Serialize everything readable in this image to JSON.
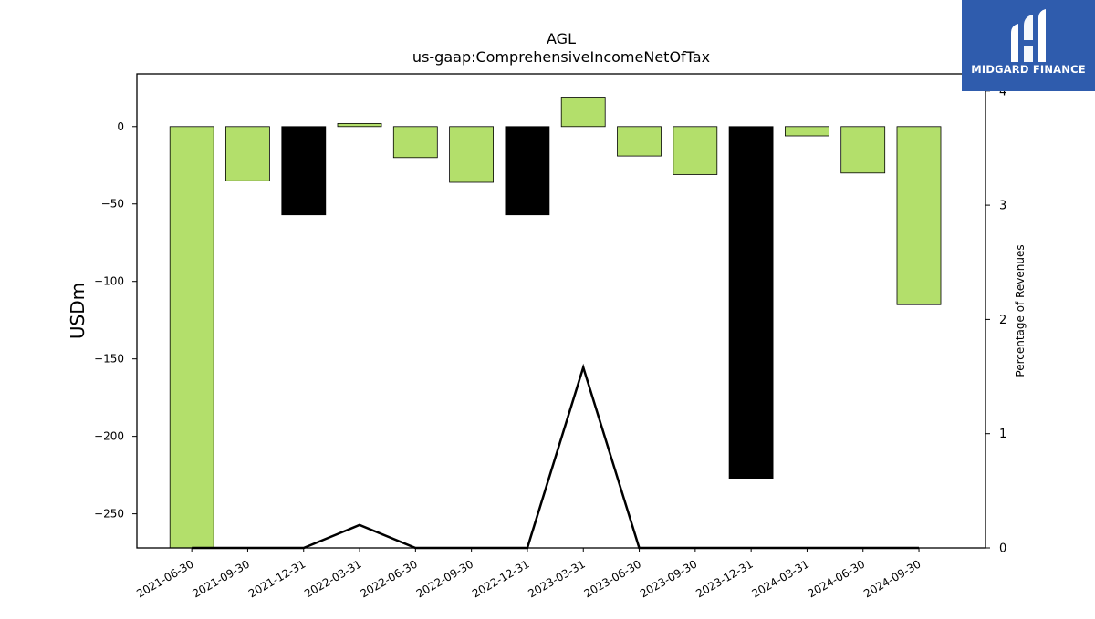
{
  "chart_data": {
    "type": "bar",
    "title": "AGL",
    "subtitle": "us-gaap:ComprehensiveIncomeNetOfTax",
    "ylabel": "USDm",
    "ylabel_right": "Percentage of Revenues",
    "ylim": [
      -272,
      34
    ],
    "ylim_right": [
      0,
      4.15
    ],
    "yticks": [
      0,
      -50,
      -100,
      -150,
      -200,
      -250
    ],
    "yticks_right": [
      0,
      1,
      2,
      3,
      4
    ],
    "categories": [
      "2021-06-30",
      "2021-09-30",
      "2021-12-31",
      "2022-03-31",
      "2022-06-30",
      "2022-09-30",
      "2022-12-31",
      "2023-03-31",
      "2023-06-30",
      "2023-09-30",
      "2023-12-31",
      "2024-03-31",
      "2024-06-30",
      "2024-09-30"
    ],
    "values": [
      -272,
      -35,
      -57,
      2,
      -20,
      -36,
      -57,
      19,
      -19,
      -31,
      -227,
      -6,
      -30,
      -115
    ],
    "bar_colors": [
      "#b3df6b",
      "#b3df6b",
      "#000000",
      "#b3df6b",
      "#b3df6b",
      "#b3df6b",
      "#000000",
      "#b3df6b",
      "#b3df6b",
      "#b3df6b",
      "#000000",
      "#b3df6b",
      "#b3df6b",
      "#b3df6b"
    ],
    "line_series": {
      "values": [
        0,
        0,
        0,
        0.2,
        0,
        0,
        0,
        1.58,
        0,
        0,
        0,
        0,
        0,
        0
      ]
    },
    "grid": false
  },
  "logo": {
    "text": "MIDGARD FINANCE"
  },
  "colors": {
    "positive_bar": "#b3df6b",
    "highlight_bar": "#000000",
    "logo_bg": "#2f5cad"
  }
}
